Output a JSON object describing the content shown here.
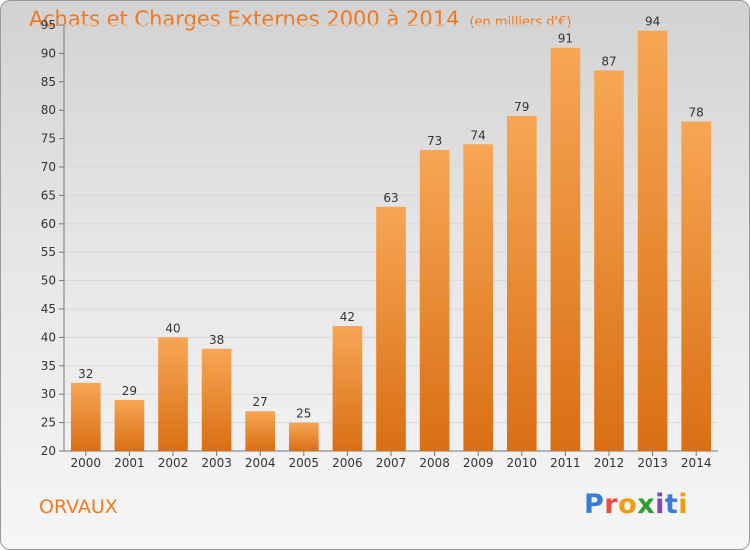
{
  "header": {
    "title": "Achats et Charges Externes 2000 à 2014",
    "subtitle": "(en milliers d'€)"
  },
  "footer": {
    "commune": "ORVAUX",
    "brand": "Proxiti"
  },
  "colors": {
    "accent": "#f07a22",
    "bar_top": "#f7a655",
    "bar_bottom": "#d96f14"
  },
  "chart_data": {
    "type": "bar",
    "title": "Achats et Charges Externes 2000 à 2014",
    "subtitle": "(en milliers d'€)",
    "categories": [
      "2000",
      "2001",
      "2002",
      "2003",
      "2004",
      "2005",
      "2006",
      "2007",
      "2008",
      "2009",
      "2010",
      "2011",
      "2012",
      "2013",
      "2014"
    ],
    "values": [
      32,
      29,
      40,
      38,
      27,
      25,
      42,
      63,
      73,
      74,
      79,
      91,
      87,
      94,
      78
    ],
    "ylim": [
      20,
      95
    ],
    "yticks": [
      20,
      25,
      30,
      35,
      40,
      45,
      50,
      55,
      60,
      65,
      70,
      75,
      80,
      85,
      90,
      95
    ],
    "grid": true,
    "xlabel": "",
    "ylabel": ""
  }
}
